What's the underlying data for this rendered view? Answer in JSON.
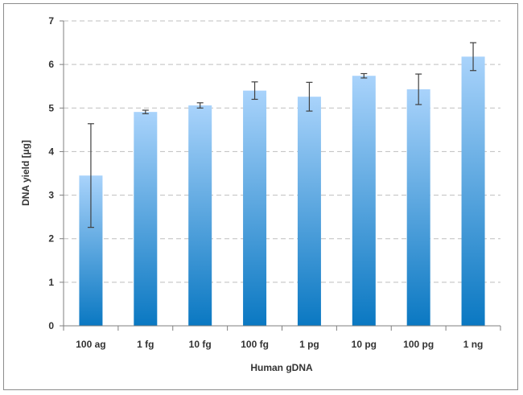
{
  "chart_data": {
    "type": "bar",
    "title": "",
    "xlabel": "Human gDNA",
    "ylabel": "DNA yield [µg]",
    "categories": [
      "100 ag",
      "1 fg",
      "10 fg",
      "100 fg",
      "1 pg",
      "10 pg",
      "100 pg",
      "1 ng"
    ],
    "values": [
      3.45,
      4.91,
      5.06,
      5.4,
      5.26,
      5.74,
      5.43,
      6.18
    ],
    "error": [
      1.19,
      0.04,
      0.06,
      0.2,
      0.33,
      0.05,
      0.35,
      0.32
    ],
    "ylim": [
      0,
      7
    ],
    "yticks": [
      0,
      1,
      2,
      3,
      4,
      5,
      6,
      7
    ],
    "grid": "horizontal dashed",
    "legend": "none",
    "colors": {
      "bar_top": "#a9d3fb",
      "bar_bottom": "#0a78c2",
      "grid": "#bfbfbf",
      "axis": "#7f7f7f",
      "error": "#404040"
    }
  }
}
